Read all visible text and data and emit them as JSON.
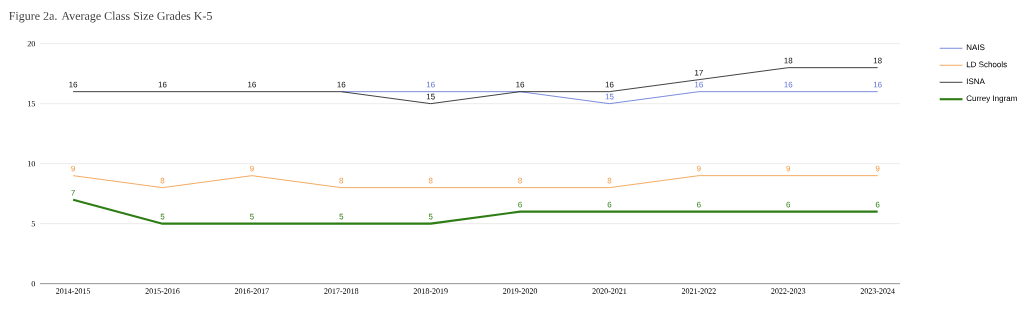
{
  "chart_data": {
    "type": "line",
    "title": "Figure 2a. Average Class Size Grades K-5",
    "categories": [
      "2014-2015",
      "2015-2016",
      "2016-2017",
      "2017-2018",
      "2018-2019",
      "2019-2020",
      "2020-2021",
      "2021-2022",
      "2022-2023",
      "2023-2024"
    ],
    "series": [
      {
        "name": "NAIS",
        "color": "#5b6fd6",
        "values": [
          null,
          null,
          null,
          16,
          16,
          16,
          15,
          16,
          16,
          16
        ],
        "value_labels": [
          null,
          null,
          null,
          null,
          "16",
          null,
          "15",
          "16",
          "16",
          "16"
        ]
      },
      {
        "name": "LD Schools",
        "color": "#f0953a",
        "values": [
          9,
          8,
          9,
          8,
          8,
          8,
          8,
          9,
          9,
          9
        ],
        "value_labels": [
          "9",
          "8",
          "9",
          "8",
          "8",
          "8",
          "8",
          "9",
          "9",
          "9"
        ]
      },
      {
        "name": "ISNA",
        "color": "#111111",
        "values": [
          16,
          16,
          16,
          16,
          15,
          16,
          16,
          17,
          18,
          18
        ],
        "value_labels": [
          "16",
          "16",
          "16",
          "16",
          "15",
          "16",
          "16",
          "17",
          "18",
          "18"
        ]
      },
      {
        "name": "Currey Ingram",
        "color": "#2e7d14",
        "values": [
          7,
          5,
          5,
          5,
          5,
          6,
          6,
          6,
          6,
          6
        ],
        "value_labels": [
          "7",
          "5",
          "5",
          "5",
          "5",
          "6",
          "6",
          "6",
          "6",
          "6"
        ]
      }
    ],
    "ylim": [
      0,
      20
    ],
    "yticks": [
      0,
      5,
      10,
      15,
      20
    ],
    "grid": "y",
    "legend": "top right",
    "marker": "none",
    "line_style": "solid"
  }
}
